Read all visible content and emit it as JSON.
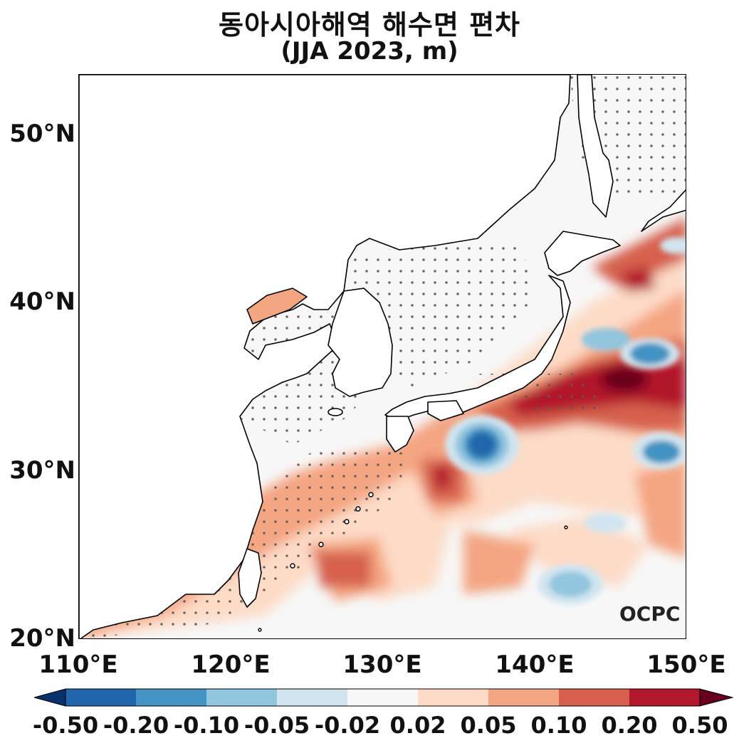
{
  "title": {
    "line1": "동아시아해역 해수면 편차",
    "line2": "(JJA 2023, m)"
  },
  "axes": {
    "lon_labels": [
      "110°E",
      "120°E",
      "130°E",
      "140°E",
      "150°E"
    ],
    "lat_labels": [
      "50°N",
      "40°N",
      "30°N",
      "20°N"
    ],
    "lon_range": [
      110,
      150
    ],
    "lat_range": [
      20,
      53.5
    ]
  },
  "colorbar": {
    "labels": [
      "-0.50",
      "-0.20",
      "-0.10",
      "-0.05",
      "-0.02",
      "0.02",
      "0.05",
      "0.10",
      "0.20",
      "0.50"
    ],
    "colors": [
      "#08306b",
      "#2166ac",
      "#4393c3",
      "#92c5de",
      "#d1e5f0",
      "#f7f7f7",
      "#fddbc7",
      "#f4a582",
      "#d6604d",
      "#b2182b",
      "#67001f"
    ]
  },
  "watermark": "OCPC",
  "map_features": {
    "land_color": "#ffffff",
    "coastline_color": "#000000",
    "stipple_color": "#555555",
    "anomalies": [
      {
        "label": "Kuroshio extension positive core",
        "lon": 146,
        "lat": 35.5,
        "value": 0.5
      },
      {
        "label": "South of Japan negative eddy",
        "lon": 136,
        "lat": 32,
        "value": -0.2
      },
      {
        "label": "Negative eddy east of Japan",
        "lon": 147,
        "lat": 37,
        "value": -0.2
      },
      {
        "label": "Negative eddy SE",
        "lon": 147,
        "lat": 31,
        "value": -0.1
      },
      {
        "label": "Negative eddy Philippine Sea",
        "lon": 142,
        "lat": 23.5,
        "value": -0.1
      }
    ]
  }
}
